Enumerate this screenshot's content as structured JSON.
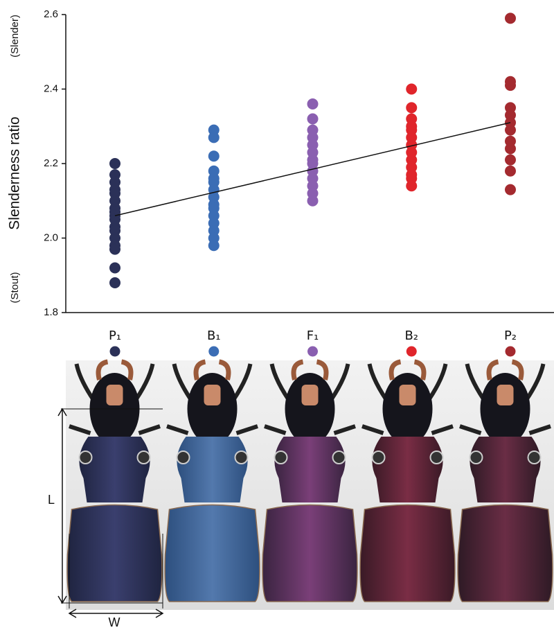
{
  "chart_data": {
    "type": "strip",
    "y_label": "Slenderness ratio",
    "y_top_note": "(Slender)",
    "y_bottom_note": "(Stout)",
    "ylim": [
      1.8,
      2.6
    ],
    "yticks": [
      1.8,
      {
        "value": 2,
        "label": "2.0"
      },
      2.2,
      2.4,
      2.6
    ],
    "series": [
      {
        "name": "P₁",
        "color": "#2b3158",
        "values": [
          2.2,
          2.17,
          2.15,
          2.13,
          2.12,
          2.1,
          2.08,
          2.07,
          2.06,
          2.05,
          2.03,
          2.02,
          2.0,
          1.98,
          1.97,
          1.92,
          1.88
        ]
      },
      {
        "name": "B₁",
        "color": "#3b6db5",
        "values": [
          2.29,
          2.27,
          2.22,
          2.18,
          2.16,
          2.15,
          2.13,
          2.11,
          2.09,
          2.08,
          2.06,
          2.04,
          2.02,
          2.0,
          1.98
        ]
      },
      {
        "name": "F₁",
        "color": "#8a5fb0",
        "values": [
          2.36,
          2.32,
          2.29,
          2.27,
          2.25,
          2.23,
          2.21,
          2.2,
          2.18,
          2.16,
          2.14,
          2.12,
          2.1
        ]
      },
      {
        "name": "B₂",
        "color": "#e0252b",
        "values": [
          2.4,
          2.35,
          2.32,
          2.3,
          2.29,
          2.27,
          2.25,
          2.23,
          2.21,
          2.19,
          2.17,
          2.16,
          2.14
        ]
      },
      {
        "name": "P₂",
        "color": "#a42a2f",
        "values": [
          2.59,
          2.42,
          2.41,
          2.35,
          2.33,
          2.31,
          2.29,
          2.26,
          2.24,
          2.21,
          2.18,
          2.13
        ]
      }
    ],
    "trend": [
      2.06,
      2.31
    ],
    "annotations": [
      "L",
      "W"
    ]
  }
}
